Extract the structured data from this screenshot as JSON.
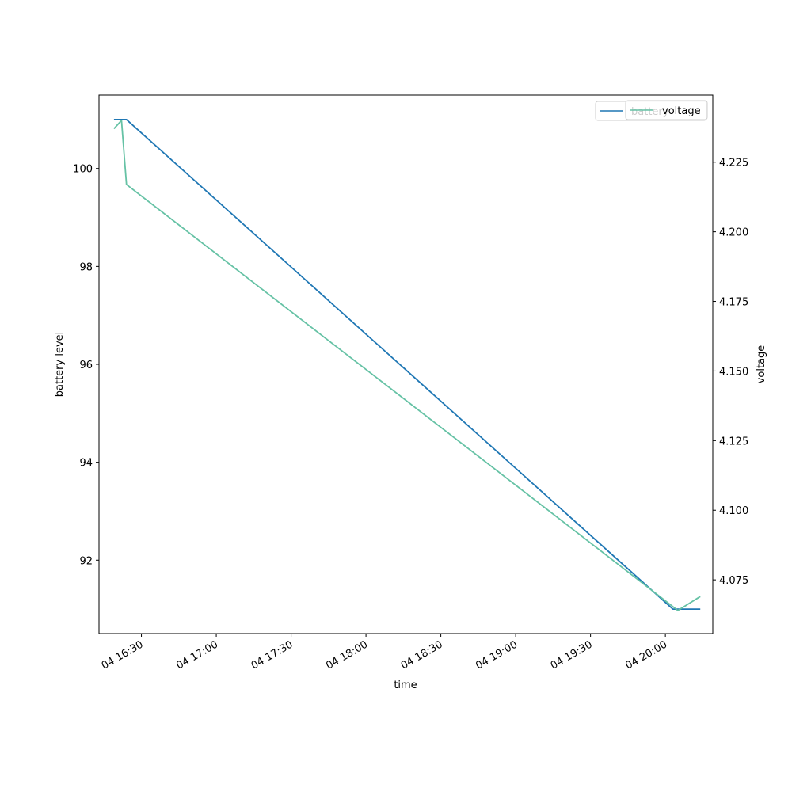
{
  "chart_data": {
    "type": "line",
    "title": "",
    "xlabel": "time",
    "ylabel": "battery level",
    "y2label": "voltage",
    "x_tick_labels": [
      "04 16:30",
      "04 17:00",
      "04 17:30",
      "04 18:00",
      "04 18:30",
      "04 19:00",
      "04 19:30",
      "04 20:00"
    ],
    "x_tick_times": [
      "16:30",
      "17:00",
      "17:30",
      "18:00",
      "18:30",
      "19:00",
      "19:30",
      "20:00"
    ],
    "xlim": [
      "16:13",
      "20:19"
    ],
    "ylim": [
      90.5,
      101.5
    ],
    "y_ticks": [
      92,
      94,
      96,
      98,
      100
    ],
    "y2lim": [
      4.0557,
      4.2491
    ],
    "y2_ticks": [
      "4.075",
      "4.100",
      "4.125",
      "4.150",
      "4.175",
      "4.200",
      "4.225"
    ],
    "grid": false,
    "legend_placement": "top-right",
    "series": [
      {
        "name": "battery",
        "axis": "left",
        "color": "#1f77b4",
        "x": [
          "16:19",
          "16:23",
          "16:24",
          "20:03",
          "20:14"
        ],
        "values": [
          101,
          101,
          101,
          91,
          91
        ]
      },
      {
        "name": "voltage",
        "axis": "right",
        "color": "#66c2a5",
        "x": [
          "16:19",
          "16:22",
          "16:24",
          "20:05",
          "20:14"
        ],
        "values": [
          4.237,
          4.24,
          4.217,
          4.064,
          4.069
        ]
      }
    ]
  }
}
